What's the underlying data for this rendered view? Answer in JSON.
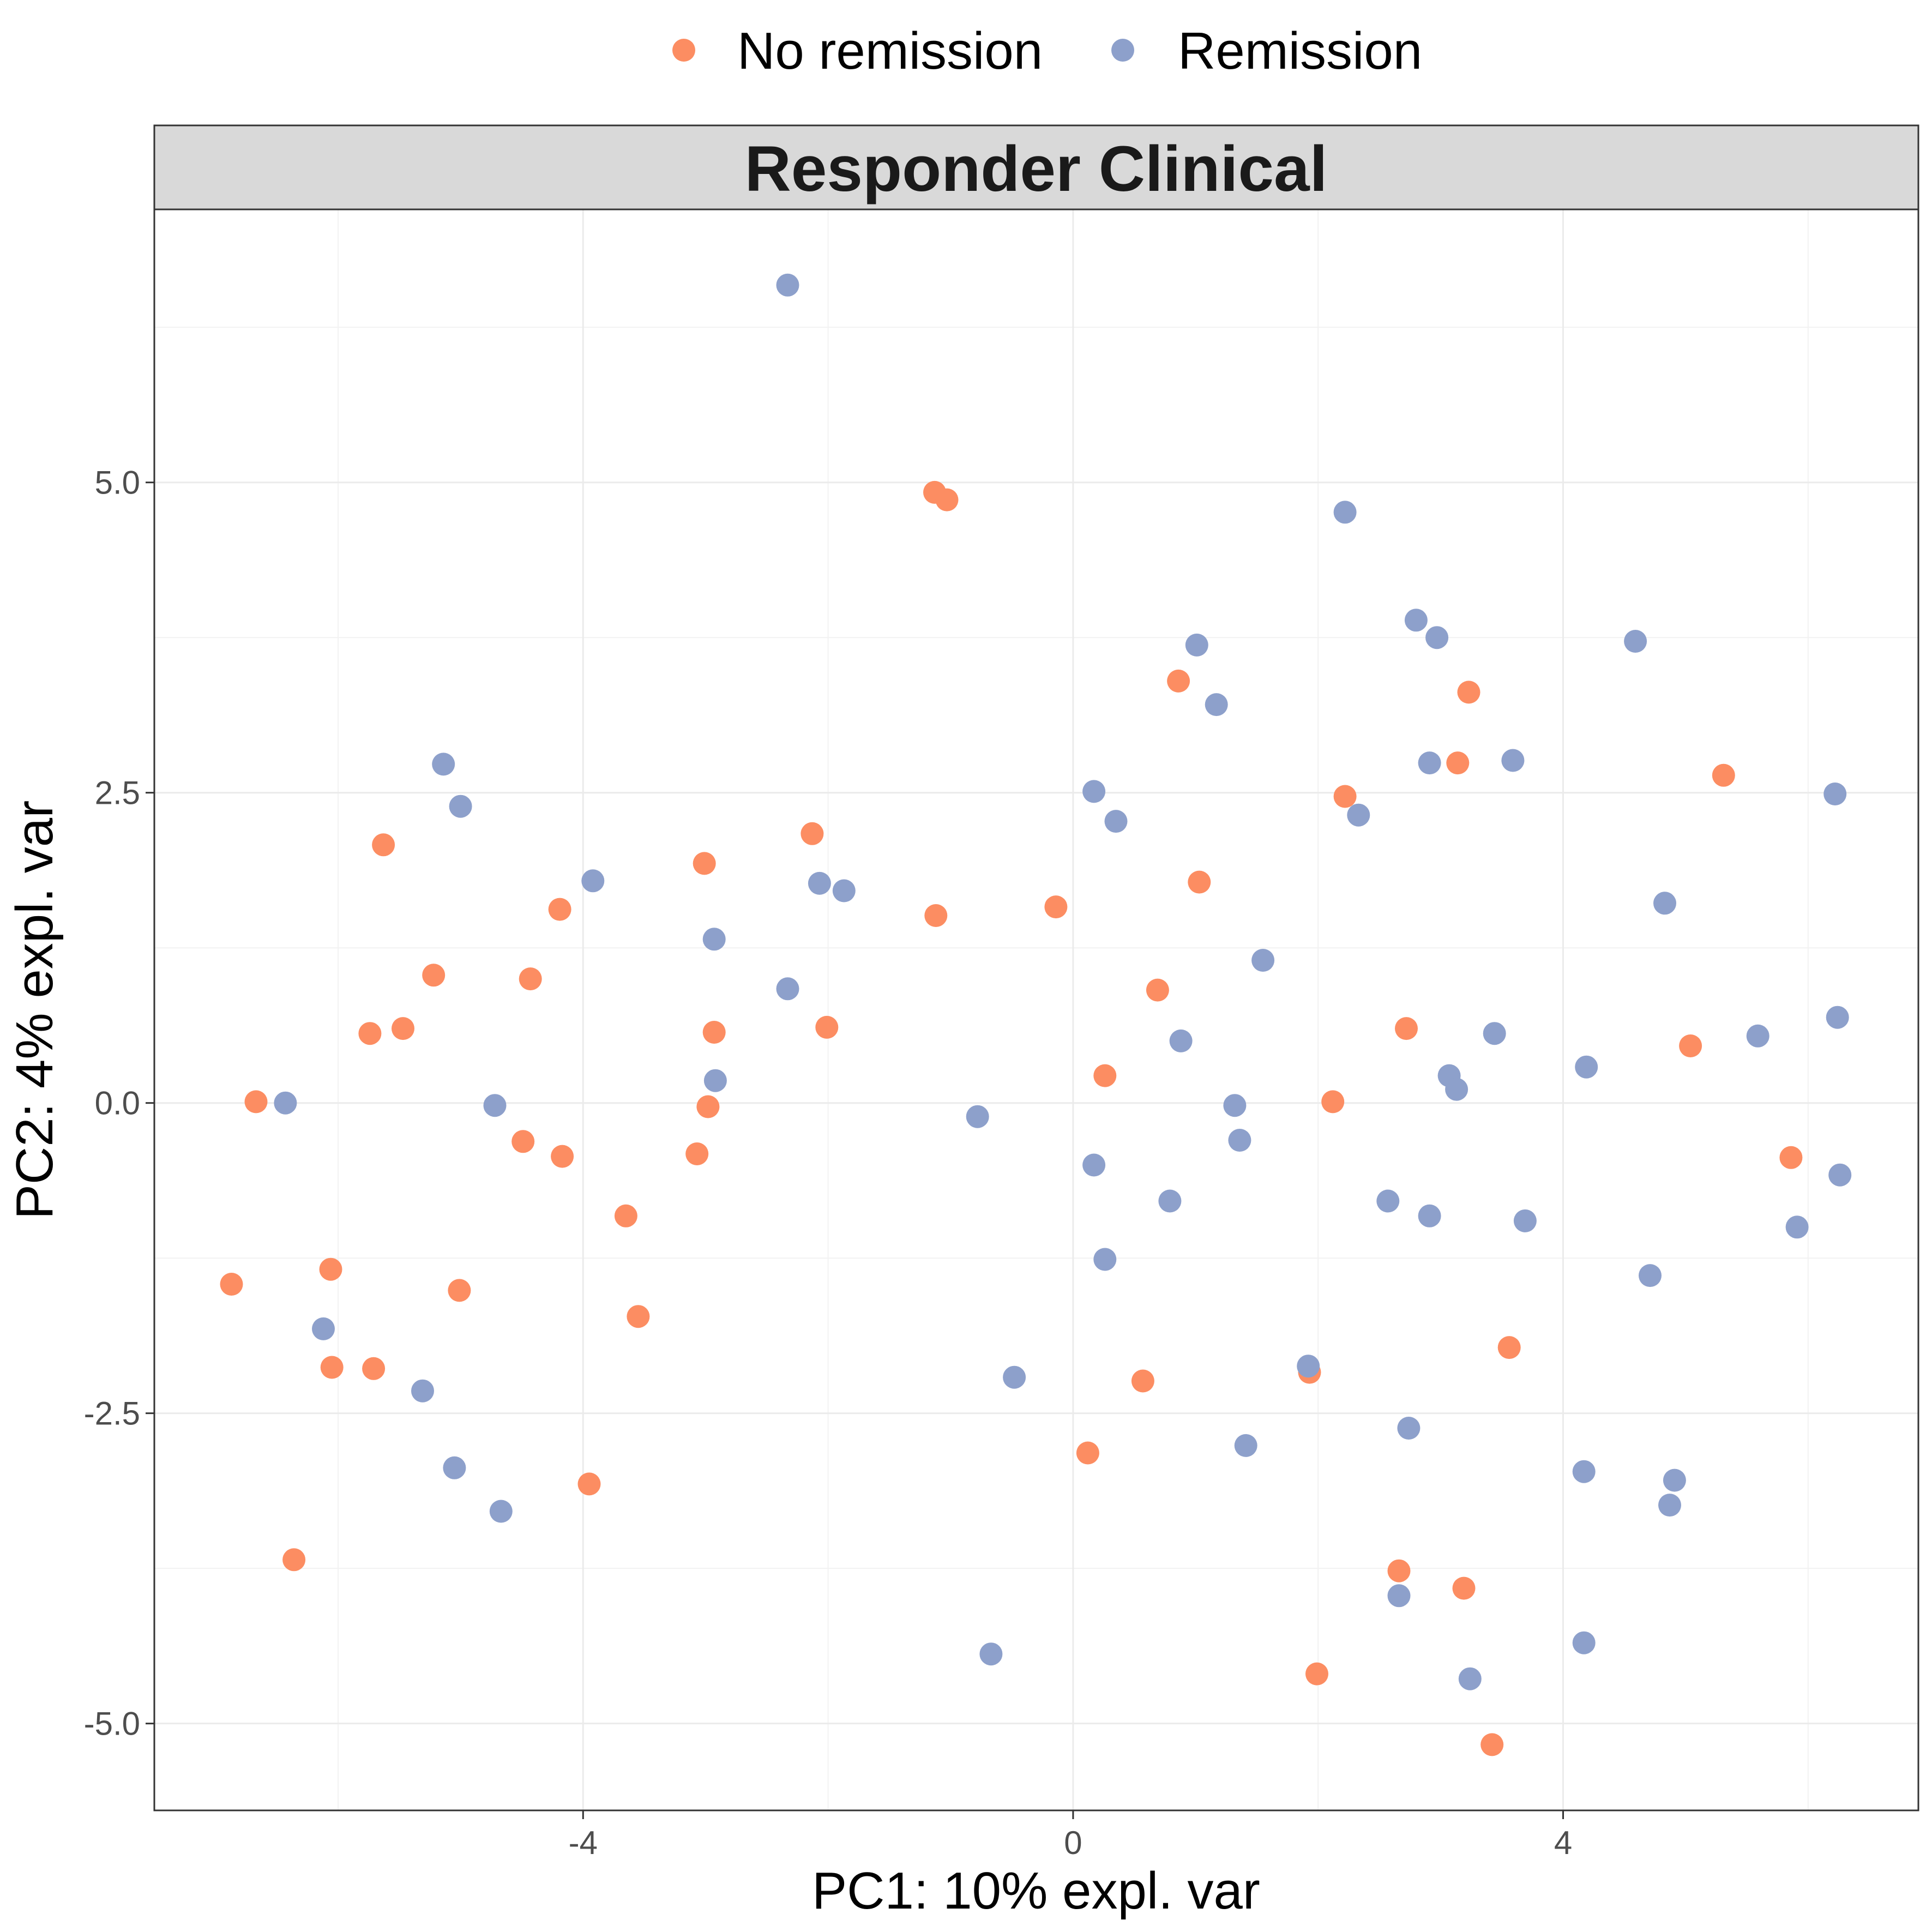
{
  "chart_data": {
    "type": "scatter",
    "facet_title": "Responder Clinical",
    "xlabel": "PC1: 10% expl. var",
    "ylabel": "PC2: 4% expl. var",
    "xlim": [
      -7.5,
      6.9
    ],
    "ylim": [
      -5.7,
      7.2
    ],
    "x_ticks": [
      -4,
      0,
      4
    ],
    "x_tick_labels": [
      "-4",
      "0",
      "4"
    ],
    "y_ticks": [
      -5.0,
      -2.5,
      0.0,
      2.5,
      5.0
    ],
    "y_tick_labels": [
      "-5.0",
      "-2.5",
      "0.0",
      "2.5",
      "5.0"
    ],
    "grid": true,
    "legend_position": "top",
    "series": [
      {
        "name": "No remission",
        "color": "#FC8D62",
        "points": [
          [
            -6.87,
            -1.46
          ],
          [
            -6.67,
            0.01
          ],
          [
            -6.36,
            -3.68
          ],
          [
            -6.06,
            -1.34
          ],
          [
            -6.05,
            -2.13
          ],
          [
            -5.74,
            0.56
          ],
          [
            -5.71,
            -2.14
          ],
          [
            -5.63,
            2.08
          ],
          [
            -5.47,
            0.6
          ],
          [
            -5.22,
            1.03
          ],
          [
            -5.01,
            -1.51
          ],
          [
            -4.49,
            -0.31
          ],
          [
            -4.43,
            1.0
          ],
          [
            -4.19,
            1.56
          ],
          [
            -4.17,
            -0.43
          ],
          [
            -3.95,
            -3.07
          ],
          [
            -3.65,
            -0.91
          ],
          [
            -3.55,
            -1.72
          ],
          [
            -3.07,
            -0.41
          ],
          [
            -3.01,
            1.93
          ],
          [
            -2.98,
            -0.03
          ],
          [
            -2.93,
            0.57
          ],
          [
            -2.13,
            2.17
          ],
          [
            -2.01,
            0.61
          ],
          [
            -1.13,
            4.92
          ],
          [
            -1.12,
            1.51
          ],
          [
            -1.03,
            4.86
          ],
          [
            -0.14,
            1.58
          ],
          [
            0.12,
            -2.82
          ],
          [
            0.26,
            0.22
          ],
          [
            0.57,
            -2.24
          ],
          [
            0.69,
            0.91
          ],
          [
            0.86,
            3.4
          ],
          [
            1.03,
            1.78
          ],
          [
            1.93,
            -2.17
          ],
          [
            1.99,
            -4.6
          ],
          [
            2.12,
            0.01
          ],
          [
            2.22,
            2.47
          ],
          [
            2.66,
            -3.77
          ],
          [
            2.72,
            0.6
          ],
          [
            3.14,
            2.74
          ],
          [
            3.19,
            -3.91
          ],
          [
            3.23,
            3.31
          ],
          [
            3.42,
            -5.17
          ],
          [
            3.56,
            -1.97
          ],
          [
            5.04,
            0.46
          ],
          [
            5.31,
            2.64
          ],
          [
            5.86,
            -0.44
          ]
        ]
      },
      {
        "name": "Remission",
        "color": "#8DA0CB",
        "points": [
          [
            -6.43,
            0.0
          ],
          [
            -6.12,
            -1.82
          ],
          [
            -5.31,
            -2.32
          ],
          [
            -5.14,
            2.73
          ],
          [
            -5.05,
            -2.94
          ],
          [
            -5.0,
            2.39
          ],
          [
            -4.72,
            -0.02
          ],
          [
            -4.67,
            -3.29
          ],
          [
            -3.92,
            1.79
          ],
          [
            -2.93,
            1.32
          ],
          [
            -2.92,
            0.18
          ],
          [
            -2.33,
            0.92
          ],
          [
            -2.33,
            6.59
          ],
          [
            -2.07,
            1.77
          ],
          [
            -1.87,
            1.71
          ],
          [
            -0.78,
            -0.11
          ],
          [
            -0.67,
            -4.44
          ],
          [
            -0.48,
            -2.21
          ],
          [
            0.17,
            -0.5
          ],
          [
            0.17,
            2.51
          ],
          [
            0.26,
            -1.26
          ],
          [
            0.35,
            2.27
          ],
          [
            0.79,
            -0.79
          ],
          [
            0.88,
            0.5
          ],
          [
            1.01,
            3.69
          ],
          [
            1.17,
            3.21
          ],
          [
            1.32,
            -0.02
          ],
          [
            1.36,
            -0.3
          ],
          [
            1.41,
            -2.76
          ],
          [
            1.55,
            1.15
          ],
          [
            1.92,
            -2.12
          ],
          [
            2.22,
            4.76
          ],
          [
            2.33,
            2.32
          ],
          [
            2.57,
            -0.79
          ],
          [
            2.66,
            -3.97
          ],
          [
            2.74,
            -2.62
          ],
          [
            2.8,
            3.89
          ],
          [
            2.91,
            2.74
          ],
          [
            2.91,
            -0.91
          ],
          [
            2.97,
            3.75
          ],
          [
            3.07,
            0.22
          ],
          [
            3.13,
            0.11
          ],
          [
            3.24,
            -4.64
          ],
          [
            3.44,
            0.56
          ],
          [
            3.59,
            2.76
          ],
          [
            3.69,
            -0.95
          ],
          [
            4.17,
            -4.35
          ],
          [
            4.17,
            -2.97
          ],
          [
            4.19,
            0.29
          ],
          [
            4.59,
            3.72
          ],
          [
            4.71,
            -1.39
          ],
          [
            4.83,
            1.61
          ],
          [
            4.87,
            -3.24
          ],
          [
            4.91,
            -3.04
          ],
          [
            5.59,
            0.54
          ],
          [
            5.91,
            -1.0
          ],
          [
            6.22,
            2.49
          ],
          [
            6.24,
            0.69
          ],
          [
            6.26,
            -0.58
          ]
        ]
      }
    ]
  },
  "legend": {
    "items": [
      {
        "label": "No remission",
        "color": "#FC8D62"
      },
      {
        "label": "Remission",
        "color": "#8DA0CB"
      }
    ]
  }
}
